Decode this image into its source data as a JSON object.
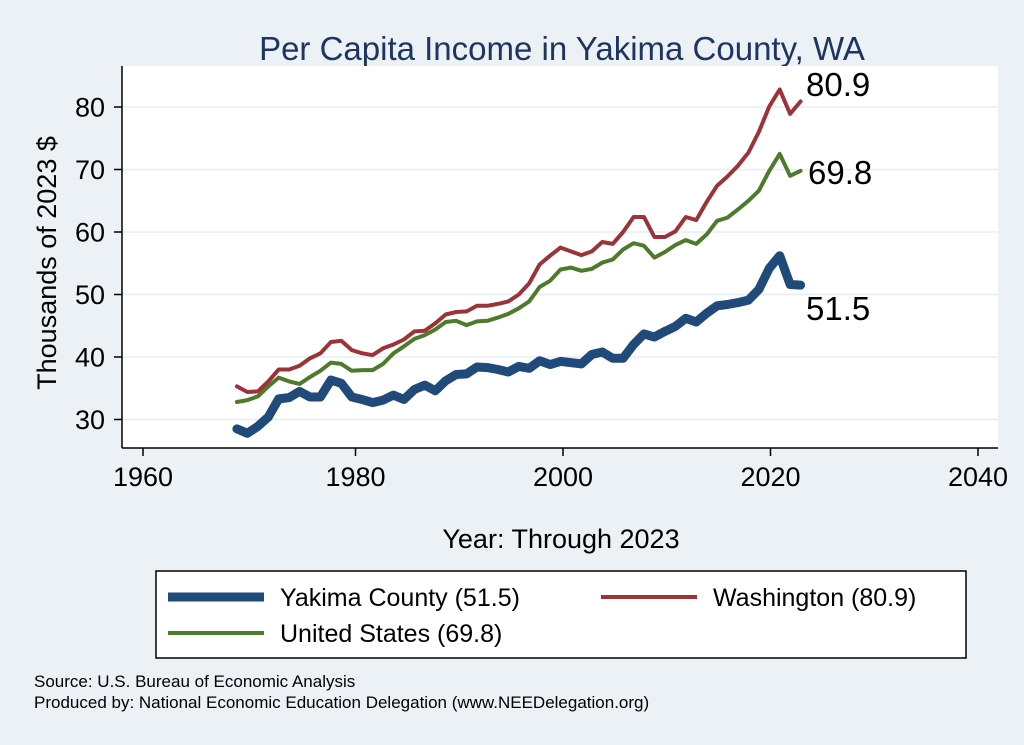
{
  "chart_data": {
    "type": "line",
    "title": "Per Capita Income in Yakima County, WA",
    "xlabel": "Year: Through 2023",
    "ylabel": "Thousands of 2023 $",
    "xlim": [
      1960,
      2040
    ],
    "ylim": [
      27,
      84
    ],
    "x_ticks": [
      1960,
      1980,
      2000,
      2020,
      2040
    ],
    "y_ticks": [
      30,
      40,
      50,
      60,
      70,
      80
    ],
    "grid": "horizontal",
    "legend_position": "bottom",
    "x": [
      1969,
      1970,
      1971,
      1972,
      1973,
      1974,
      1975,
      1976,
      1977,
      1978,
      1979,
      1980,
      1981,
      1982,
      1983,
      1984,
      1985,
      1986,
      1987,
      1988,
      1989,
      1990,
      1991,
      1992,
      1993,
      1994,
      1995,
      1996,
      1997,
      1998,
      1999,
      2000,
      2001,
      2002,
      2003,
      2004,
      2005,
      2006,
      2007,
      2008,
      2009,
      2010,
      2011,
      2012,
      2013,
      2014,
      2015,
      2016,
      2017,
      2018,
      2019,
      2020,
      2021,
      2022,
      2023
    ],
    "series": [
      {
        "name": "Yakima County (51.5)",
        "color": "#1f4a7a",
        "stroke_weight": "thick",
        "values": [
          28.5,
          27.8,
          28.9,
          30.4,
          33.3,
          33.5,
          34.5,
          33.6,
          33.6,
          36.3,
          35.8,
          33.6,
          33.2,
          32.7,
          33.1,
          33.9,
          33.2,
          34.8,
          35.5,
          34.6,
          36.2,
          37.2,
          37.3,
          38.4,
          38.3,
          38.0,
          37.6,
          38.5,
          38.2,
          39.4,
          38.8,
          39.3,
          39.1,
          38.9,
          40.4,
          40.8,
          39.8,
          39.8,
          42.0,
          43.7,
          43.2,
          44.1,
          44.9,
          46.2,
          45.6,
          47.0,
          48.2,
          48.4,
          48.7,
          49.1,
          50.8,
          54.2,
          56.2,
          51.6,
          51.5
        ]
      },
      {
        "name": "Washington (80.9)",
        "color": "#9c3338",
        "stroke_weight": "normal",
        "values": [
          35.3,
          34.4,
          34.5,
          36.1,
          38.0,
          38.0,
          38.6,
          39.8,
          40.6,
          42.4,
          42.6,
          41.1,
          40.6,
          40.3,
          41.4,
          42.0,
          42.8,
          44.1,
          44.2,
          45.4,
          46.8,
          47.2,
          47.3,
          48.2,
          48.2,
          48.5,
          48.9,
          50.0,
          51.8,
          54.8,
          56.2,
          57.5,
          56.9,
          56.3,
          56.9,
          58.4,
          58.1,
          60.0,
          62.4,
          62.4,
          59.2,
          59.2,
          60.1,
          62.4,
          61.9,
          64.8,
          67.4,
          68.9,
          70.6,
          72.7,
          76.0,
          80.1,
          82.8,
          78.9,
          80.9
        ]
      },
      {
        "name": "United States (69.8)",
        "color": "#4e7a2b",
        "stroke_weight": "normal",
        "values": [
          32.8,
          33.1,
          33.7,
          35.3,
          36.7,
          36.1,
          35.7,
          36.8,
          37.8,
          39.1,
          38.9,
          37.8,
          37.9,
          37.9,
          38.9,
          40.6,
          41.7,
          42.9,
          43.5,
          44.4,
          45.6,
          45.8,
          45.1,
          45.7,
          45.8,
          46.3,
          46.9,
          47.8,
          48.9,
          51.2,
          52.2,
          54.0,
          54.3,
          53.8,
          54.1,
          55.1,
          55.6,
          57.2,
          58.2,
          57.8,
          55.9,
          56.8,
          57.9,
          58.7,
          58.1,
          59.6,
          61.8,
          62.3,
          63.6,
          65.0,
          66.6,
          69.8,
          72.5,
          69.0,
          69.8
        ]
      }
    ],
    "end_labels": [
      "80.9",
      "69.8",
      "51.5"
    ]
  },
  "legend": {
    "yakima": "Yakima County (51.5)",
    "washington": "Washington (80.9)",
    "us": "United States (69.8)"
  },
  "footer": {
    "source": "Source: U.S. Bureau of Economic Analysis",
    "produced": "Produced by: National Economic Education Delegation (www.NEEDelegation.org)"
  }
}
